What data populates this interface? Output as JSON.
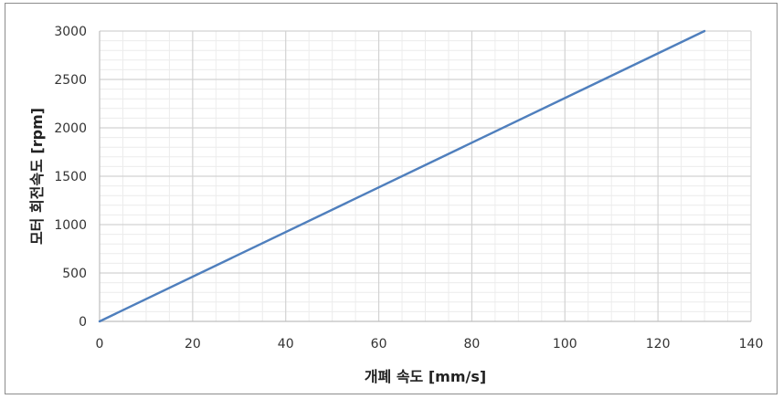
{
  "chart_data": {
    "type": "line",
    "title": "",
    "xlabel": "개폐 속도 [mm/s]",
    "ylabel": "모터 회전속도 [rpm]",
    "xlim": [
      0,
      140
    ],
    "ylim": [
      0,
      3000
    ],
    "x_ticks": [
      "0",
      "20",
      "40",
      "60",
      "80",
      "100",
      "120",
      "140"
    ],
    "y_ticks": [
      "0",
      "500",
      "1000",
      "1500",
      "2000",
      "2500",
      "3000"
    ],
    "grid": true,
    "minor_grid": true,
    "legend": "none",
    "series": [
      {
        "color": "#4f7fbd",
        "x": [
          0,
          130
        ],
        "y": [
          0,
          3000
        ]
      }
    ]
  }
}
